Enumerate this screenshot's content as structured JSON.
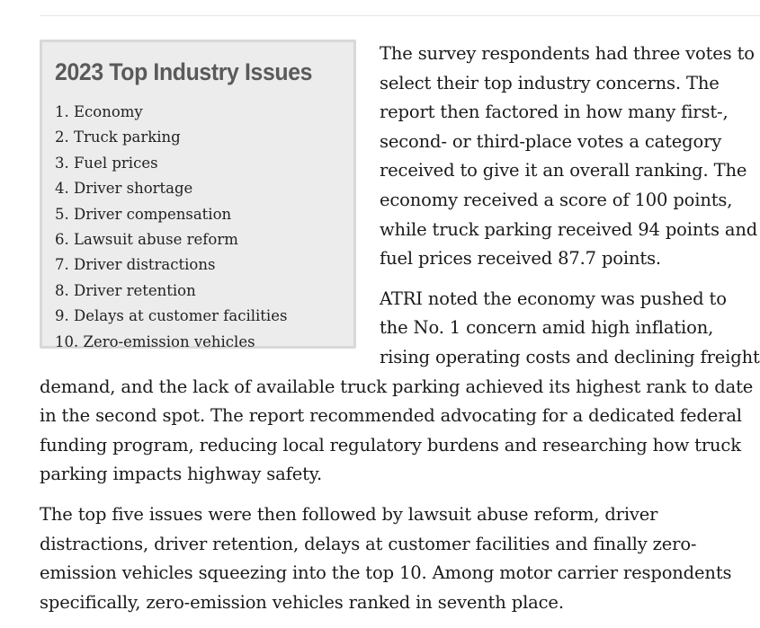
{
  "sidebar": {
    "title": "2023 Top Industry Issues",
    "items": [
      "1. Economy",
      "2. Truck parking",
      "3. Fuel prices",
      "4. Driver shortage",
      "5. Driver compensation",
      "6. Lawsuit abuse reform",
      "7. Driver distractions",
      "8. Driver retention",
      "9. Delays at customer facilities",
      "10. Zero-emission vehicles"
    ]
  },
  "article": {
    "paragraphs": [
      "The survey respondents had three votes to select their top industry concerns. The report then factored in how many first-, second- or third-place votes a category received to give it an overall ranking. The economy received a score of 100 points, while truck parking received 94 points and fuel prices received 87.7 points.",
      "ATRI noted the economy was pushed to the No. 1 concern amid high inflation, rising operating costs and declining freight demand, and the lack of available truck parking achieved its highest rank to date in the second spot. The report recommended advocating for a dedicated federal funding program, reducing local regulatory burdens and researching how truck parking impacts highway safety.",
      "The top five issues were then followed by lawsuit abuse reform, driver distractions, driver retention, delays at customer facilities and finally zero-emission vehicles squeezing into the top 10. Among motor carrier respondents specifically, zero-emission vehicles ranked in seventh place."
    ]
  }
}
